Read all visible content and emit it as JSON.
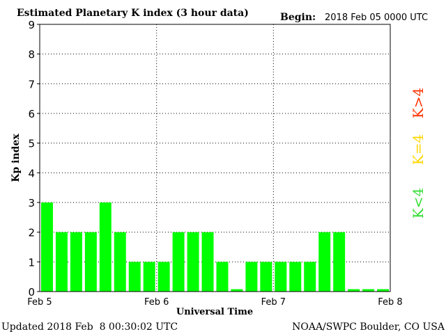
{
  "header": {
    "title": "Estimated Planetary K index (3 hour data)",
    "begin_label": "Begin:",
    "begin_value": "2018 Feb 05 0000 UTC"
  },
  "footer": {
    "updated": "Updated 2018 Feb  8 00:30:02 UTC",
    "source": "NOAA/SWPC Boulder, CO USA"
  },
  "legend": {
    "high": "K>4",
    "equal": "K=4",
    "low": "K<4"
  },
  "colors": {
    "bar_low": "#00ff00",
    "bar_mid": "#ffd700",
    "bar_high": "#ff3300",
    "legend_high": "#ff3300",
    "legend_equal": "#ffd700",
    "legend_low": "#33dd33",
    "grid": "#000000"
  },
  "chart_data": {
    "type": "bar",
    "title": "Estimated Planetary K index (3 hour data)",
    "xlabel": "Universal Time",
    "ylabel": "Kp index",
    "ylim": [
      0,
      9
    ],
    "yticks": [
      0,
      1,
      2,
      3,
      4,
      5,
      6,
      7,
      8,
      9
    ],
    "xtick_labels": [
      "Feb 5",
      "Feb 6",
      "Feb 7",
      "Feb 8"
    ],
    "grid": true,
    "legend_placement": "right",
    "interval_hours": 3,
    "series": [
      {
        "values": [
          3,
          2,
          2,
          2,
          3,
          2,
          1,
          1,
          1,
          2,
          2,
          2,
          1,
          0,
          1,
          1,
          1,
          1,
          1,
          2,
          2,
          0,
          0,
          0
        ]
      }
    ]
  }
}
